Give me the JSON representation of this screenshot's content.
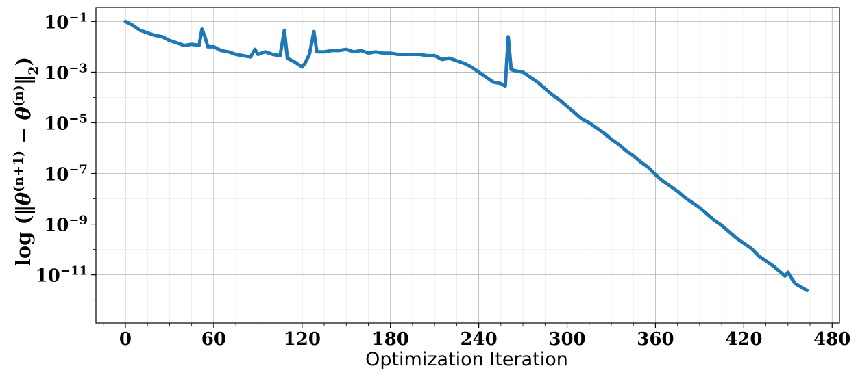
{
  "chart_data": {
    "type": "line",
    "xlabel": "Optimization Iteration",
    "ylabel": "log (‖θ(n+1) − θ(n)‖2)",
    "xlim": [
      -20,
      485
    ],
    "ylim_log10": [
      -12.9,
      -0.45
    ],
    "y_scale": "log",
    "grid": true,
    "x_ticks": [
      0,
      60,
      120,
      180,
      240,
      300,
      360,
      420,
      480
    ],
    "x_tick_labels": [
      "0",
      "60",
      "120",
      "180",
      "240",
      "300",
      "360",
      "420",
      "480"
    ],
    "y_ticks_log10": [
      -1,
      -3,
      -5,
      -7,
      -9,
      -11
    ],
    "series": [
      {
        "color": "#1f77b4",
        "x_log10y": [
          [
            0,
            -1.0
          ],
          [
            5,
            -1.15
          ],
          [
            10,
            -1.35
          ],
          [
            15,
            -1.45
          ],
          [
            20,
            -1.55
          ],
          [
            25,
            -1.6
          ],
          [
            30,
            -1.75
          ],
          [
            35,
            -1.85
          ],
          [
            40,
            -1.95
          ],
          [
            45,
            -1.9
          ],
          [
            50,
            -1.95
          ],
          [
            52,
            -1.3
          ],
          [
            54,
            -1.6
          ],
          [
            56,
            -2.0
          ],
          [
            60,
            -2.0
          ],
          [
            65,
            -2.15
          ],
          [
            70,
            -2.2
          ],
          [
            75,
            -2.3
          ],
          [
            80,
            -2.35
          ],
          [
            85,
            -2.4
          ],
          [
            88,
            -2.1
          ],
          [
            90,
            -2.3
          ],
          [
            95,
            -2.2
          ],
          [
            100,
            -2.3
          ],
          [
            105,
            -2.35
          ],
          [
            108,
            -1.35
          ],
          [
            110,
            -2.45
          ],
          [
            115,
            -2.6
          ],
          [
            120,
            -2.8
          ],
          [
            122,
            -2.65
          ],
          [
            125,
            -2.3
          ],
          [
            128,
            -1.4
          ],
          [
            130,
            -2.2
          ],
          [
            135,
            -2.2
          ],
          [
            140,
            -2.15
          ],
          [
            145,
            -2.15
          ],
          [
            150,
            -2.1
          ],
          [
            155,
            -2.2
          ],
          [
            160,
            -2.15
          ],
          [
            165,
            -2.25
          ],
          [
            170,
            -2.2
          ],
          [
            175,
            -2.25
          ],
          [
            180,
            -2.25
          ],
          [
            185,
            -2.3
          ],
          [
            190,
            -2.3
          ],
          [
            195,
            -2.3
          ],
          [
            200,
            -2.3
          ],
          [
            205,
            -2.35
          ],
          [
            210,
            -2.35
          ],
          [
            215,
            -2.5
          ],
          [
            220,
            -2.45
          ],
          [
            225,
            -2.55
          ],
          [
            230,
            -2.65
          ],
          [
            235,
            -2.8
          ],
          [
            240,
            -3.0
          ],
          [
            245,
            -3.2
          ],
          [
            250,
            -3.4
          ],
          [
            255,
            -3.45
          ],
          [
            258,
            -3.55
          ],
          [
            260,
            -1.6
          ],
          [
            262,
            -2.9
          ],
          [
            265,
            -2.95
          ],
          [
            270,
            -3.0
          ],
          [
            275,
            -3.2
          ],
          [
            280,
            -3.4
          ],
          [
            285,
            -3.65
          ],
          [
            290,
            -3.9
          ],
          [
            295,
            -4.1
          ],
          [
            300,
            -4.35
          ],
          [
            305,
            -4.6
          ],
          [
            310,
            -4.85
          ],
          [
            315,
            -5.0
          ],
          [
            320,
            -5.2
          ],
          [
            325,
            -5.4
          ],
          [
            330,
            -5.65
          ],
          [
            335,
            -5.85
          ],
          [
            340,
            -6.1
          ],
          [
            345,
            -6.3
          ],
          [
            350,
            -6.55
          ],
          [
            355,
            -6.75
          ],
          [
            360,
            -7.05
          ],
          [
            365,
            -7.3
          ],
          [
            370,
            -7.5
          ],
          [
            375,
            -7.7
          ],
          [
            380,
            -7.95
          ],
          [
            385,
            -8.15
          ],
          [
            390,
            -8.35
          ],
          [
            395,
            -8.6
          ],
          [
            400,
            -8.85
          ],
          [
            405,
            -9.05
          ],
          [
            410,
            -9.3
          ],
          [
            415,
            -9.55
          ],
          [
            420,
            -9.75
          ],
          [
            425,
            -9.95
          ],
          [
            430,
            -10.25
          ],
          [
            435,
            -10.45
          ],
          [
            440,
            -10.65
          ],
          [
            445,
            -10.9
          ],
          [
            448,
            -11.05
          ],
          [
            450,
            -10.9
          ],
          [
            452,
            -11.1
          ],
          [
            455,
            -11.35
          ],
          [
            458,
            -11.45
          ],
          [
            461,
            -11.55
          ],
          [
            463,
            -11.62
          ]
        ]
      }
    ]
  }
}
